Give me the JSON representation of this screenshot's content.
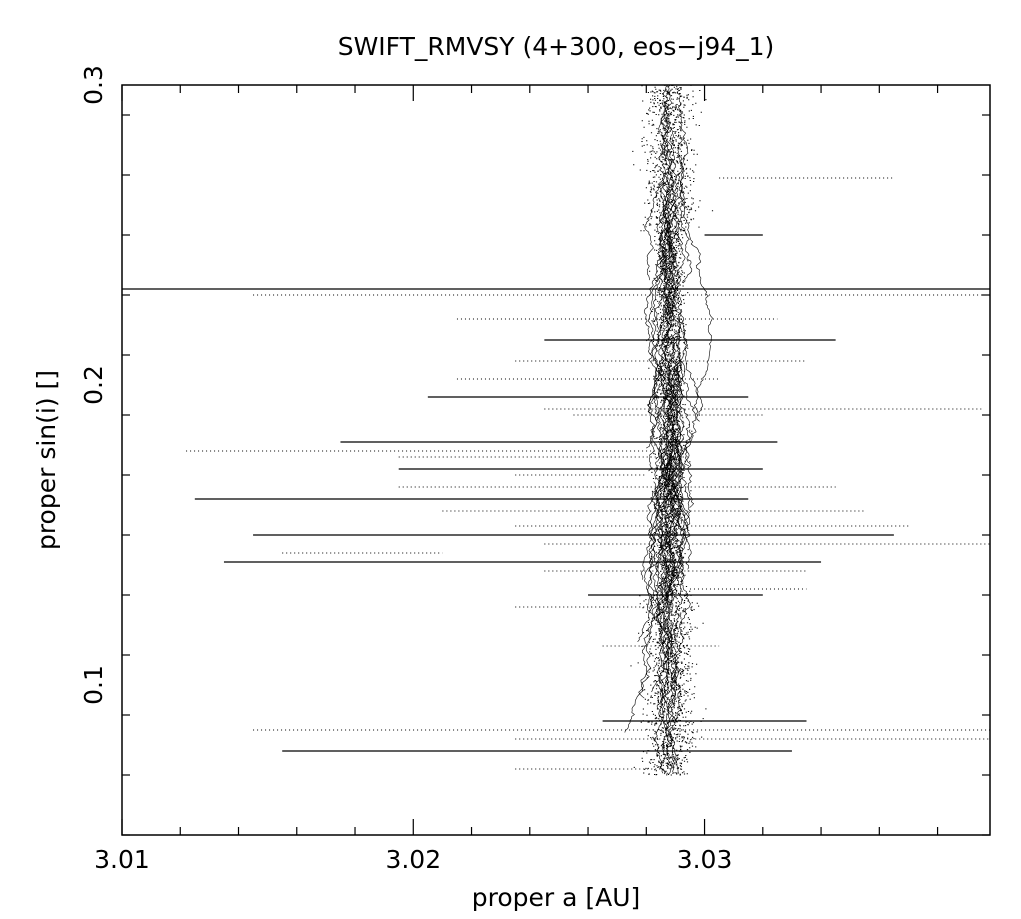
{
  "chart_data": {
    "type": "scatter",
    "title": "SWIFT_RMVSY (4+300, eos−j94_1)",
    "xlabel": "proper a [AU]",
    "ylabel": "proper sin(i) []",
    "xlim": [
      3.01,
      3.0398
    ],
    "ylim": [
      0.05,
      0.3
    ],
    "x_ticks_major": [
      3.01,
      3.02,
      3.03
    ],
    "x_tick_labels": [
      "3.01",
      "3.02",
      "3.03"
    ],
    "y_ticks_major": [
      0.1,
      0.2,
      0.3
    ],
    "y_tick_labels": [
      "0.1",
      "0.2",
      "0.3"
    ],
    "x_minor_step": 0.002,
    "y_minor_step": 0.02,
    "grid": false,
    "legend": "none",
    "colors": {
      "axes": "#000000",
      "points": "#000000",
      "background": "#ffffff"
    },
    "cluster": {
      "center_a": 3.0288,
      "a_spread": 0.0005,
      "sin_i_range": [
        0.07,
        0.3
      ]
    },
    "horizontal_tracks": [
      {
        "sin_i": 0.232,
        "a_range": [
          3.01,
          3.0398
        ]
      },
      {
        "sin_i": 0.23,
        "a_range": [
          3.0145,
          3.0398
        ]
      },
      {
        "sin_i": 0.222,
        "a_range": [
          3.0215,
          3.0325
        ]
      },
      {
        "sin_i": 0.215,
        "a_range": [
          3.0245,
          3.0345
        ]
      },
      {
        "sin_i": 0.208,
        "a_range": [
          3.0235,
          3.0335
        ]
      },
      {
        "sin_i": 0.202,
        "a_range": [
          3.0215,
          3.0305
        ]
      },
      {
        "sin_i": 0.196,
        "a_range": [
          3.0205,
          3.0315
        ]
      },
      {
        "sin_i": 0.192,
        "a_range": [
          3.0245,
          3.0395
        ]
      },
      {
        "sin_i": 0.19,
        "a_range": [
          3.0255,
          3.032
        ]
      },
      {
        "sin_i": 0.181,
        "a_range": [
          3.0175,
          3.0325
        ]
      },
      {
        "sin_i": 0.178,
        "a_range": [
          3.0122,
          3.0295
        ]
      },
      {
        "sin_i": 0.176,
        "a_range": [
          3.0195,
          3.0295
        ]
      },
      {
        "sin_i": 0.172,
        "a_range": [
          3.0195,
          3.032
        ]
      },
      {
        "sin_i": 0.17,
        "a_range": [
          3.0235,
          3.028
        ]
      },
      {
        "sin_i": 0.166,
        "a_range": [
          3.0195,
          3.0345
        ]
      },
      {
        "sin_i": 0.162,
        "a_range": [
          3.0125,
          3.0315
        ]
      },
      {
        "sin_i": 0.158,
        "a_range": [
          3.021,
          3.0355
        ]
      },
      {
        "sin_i": 0.153,
        "a_range": [
          3.0235,
          3.037
        ]
      },
      {
        "sin_i": 0.15,
        "a_range": [
          3.0145,
          3.0365
        ]
      },
      {
        "sin_i": 0.147,
        "a_range": [
          3.0245,
          3.0398
        ]
      },
      {
        "sin_i": 0.144,
        "a_range": [
          3.0155,
          3.021
        ]
      },
      {
        "sin_i": 0.141,
        "a_range": [
          3.0135,
          3.034
        ]
      },
      {
        "sin_i": 0.138,
        "a_range": [
          3.0245,
          3.0335
        ]
      },
      {
        "sin_i": 0.132,
        "a_range": [
          3.0295,
          3.0335
        ]
      },
      {
        "sin_i": 0.13,
        "a_range": [
          3.026,
          3.032
        ]
      },
      {
        "sin_i": 0.126,
        "a_range": [
          3.0235,
          3.0285
        ]
      },
      {
        "sin_i": 0.113,
        "a_range": [
          3.0265,
          3.0305
        ]
      },
      {
        "sin_i": 0.088,
        "a_range": [
          3.0265,
          3.0335
        ]
      },
      {
        "sin_i": 0.085,
        "a_range": [
          3.0145,
          3.0398
        ]
      },
      {
        "sin_i": 0.082,
        "a_range": [
          3.0235,
          3.0398
        ]
      },
      {
        "sin_i": 0.078,
        "a_range": [
          3.0155,
          3.033
        ]
      },
      {
        "sin_i": 0.072,
        "a_range": [
          3.0235,
          3.0285
        ]
      },
      {
        "sin_i": 0.269,
        "a_range": [
          3.0305,
          3.0365
        ]
      },
      {
        "sin_i": 0.25,
        "a_range": [
          3.03,
          3.032
        ]
      }
    ]
  }
}
